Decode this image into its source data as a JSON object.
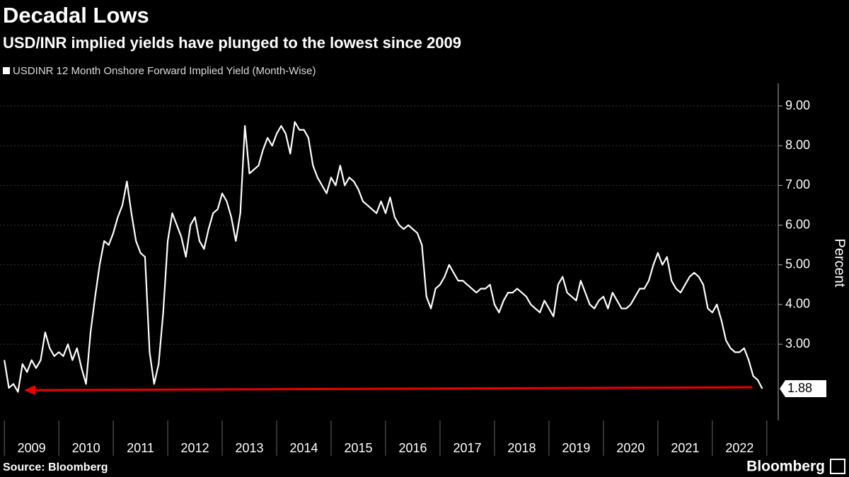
{
  "chart_data": {
    "type": "line",
    "title": "Decadal Lows",
    "subtitle": "USD/INR implied yields have plunged to the lowest since 2009",
    "y_label": "Percent",
    "source": "Source: Bloomberg",
    "brand": "Bloomberg",
    "xlim": [
      2008.92,
      2023.21
    ],
    "xticks": [
      2009,
      2010,
      2011,
      2012,
      2013,
      2014,
      2015,
      2016,
      2017,
      2018,
      2019,
      2020,
      2021,
      2022
    ],
    "ylim": [
      1.08,
      9.57
    ],
    "yticks": [
      {
        "value": 3,
        "label": "3.00"
      },
      {
        "value": 4,
        "label": "4.00"
      },
      {
        "value": 5,
        "label": "5.00"
      },
      {
        "value": 6,
        "label": "6.00"
      },
      {
        "value": 7,
        "label": "7.00"
      },
      {
        "value": 8,
        "label": "8.00"
      },
      {
        "value": 9,
        "label": "9.00"
      }
    ],
    "grid": true,
    "x": [
      2009,
      2009.083,
      2009.167,
      2009.25,
      2009.333,
      2009.417,
      2009.5,
      2009.583,
      2009.667,
      2009.75,
      2009.833,
      2009.917,
      2010,
      2010.083,
      2010.167,
      2010.25,
      2010.333,
      2010.417,
      2010.5,
      2010.583,
      2010.667,
      2010.75,
      2010.833,
      2010.917,
      2011,
      2011.083,
      2011.167,
      2011.25,
      2011.333,
      2011.417,
      2011.5,
      2011.583,
      2011.667,
      2011.75,
      2011.833,
      2011.917,
      2012,
      2012.083,
      2012.167,
      2012.25,
      2012.333,
      2012.417,
      2012.5,
      2012.583,
      2012.667,
      2012.75,
      2012.833,
      2012.917,
      2013,
      2013.083,
      2013.167,
      2013.25,
      2013.333,
      2013.417,
      2013.5,
      2013.583,
      2013.667,
      2013.75,
      2013.833,
      2013.917,
      2014,
      2014.083,
      2014.167,
      2014.25,
      2014.333,
      2014.417,
      2014.5,
      2014.583,
      2014.667,
      2014.75,
      2014.833,
      2014.917,
      2015,
      2015.083,
      2015.167,
      2015.25,
      2015.333,
      2015.417,
      2015.5,
      2015.583,
      2015.667,
      2015.75,
      2015.833,
      2015.917,
      2016,
      2016.083,
      2016.167,
      2016.25,
      2016.333,
      2016.417,
      2016.5,
      2016.583,
      2016.667,
      2016.75,
      2016.833,
      2016.917,
      2017,
      2017.083,
      2017.167,
      2017.25,
      2017.333,
      2017.417,
      2017.5,
      2017.583,
      2017.667,
      2017.75,
      2017.833,
      2017.917,
      2018,
      2018.083,
      2018.167,
      2018.25,
      2018.333,
      2018.417,
      2018.5,
      2018.583,
      2018.667,
      2018.75,
      2018.833,
      2018.917,
      2019,
      2019.083,
      2019.167,
      2019.25,
      2019.333,
      2019.417,
      2019.5,
      2019.583,
      2019.667,
      2019.75,
      2019.833,
      2019.917,
      2020,
      2020.083,
      2020.167,
      2020.25,
      2020.333,
      2020.417,
      2020.5,
      2020.583,
      2020.667,
      2020.75,
      2020.833,
      2020.917,
      2021,
      2021.083,
      2021.167,
      2021.25,
      2021.333,
      2021.417,
      2021.5,
      2021.583,
      2021.667,
      2021.75,
      2021.833,
      2021.917,
      2022,
      2022.083,
      2022.167,
      2022.25,
      2022.333,
      2022.417,
      2022.5,
      2022.583,
      2022.667,
      2022.75,
      2022.833,
      2022.917
    ],
    "series": [
      {
        "name": "USDINR 12 Month Onshore Forward Implied Yield (Month-Wise)",
        "color": "#ffffff",
        "values": [
          2.6,
          1.9,
          2.0,
          1.8,
          2.5,
          2.3,
          2.6,
          2.4,
          2.6,
          3.3,
          2.9,
          2.7,
          2.8,
          2.7,
          3.0,
          2.6,
          2.9,
          2.4,
          2.0,
          3.3,
          4.2,
          5.0,
          5.6,
          5.5,
          5.8,
          6.2,
          6.5,
          7.1,
          6.3,
          5.6,
          5.3,
          5.2,
          2.8,
          2.0,
          2.5,
          3.8,
          5.6,
          6.3,
          6.0,
          5.7,
          5.2,
          6.0,
          6.2,
          5.6,
          5.4,
          5.9,
          6.3,
          6.4,
          6.8,
          6.6,
          6.2,
          5.6,
          6.3,
          8.5,
          7.3,
          7.4,
          7.5,
          7.9,
          8.2,
          8.0,
          8.3,
          8.5,
          8.3,
          7.8,
          8.6,
          8.4,
          8.4,
          8.2,
          7.5,
          7.2,
          7.0,
          6.8,
          7.2,
          7.0,
          7.5,
          7.0,
          7.2,
          7.1,
          6.9,
          6.6,
          6.5,
          6.4,
          6.3,
          6.6,
          6.3,
          6.7,
          6.2,
          6.0,
          5.9,
          6.0,
          5.9,
          5.8,
          5.5,
          4.2,
          3.9,
          4.4,
          4.5,
          4.7,
          5.0,
          4.8,
          4.6,
          4.6,
          4.5,
          4.4,
          4.3,
          4.4,
          4.4,
          4.5,
          4.0,
          3.8,
          4.1,
          4.3,
          4.3,
          4.4,
          4.3,
          4.2,
          4.0,
          3.9,
          3.8,
          4.1,
          3.9,
          3.7,
          4.5,
          4.7,
          4.3,
          4.2,
          4.1,
          4.6,
          4.3,
          4.0,
          3.9,
          4.1,
          4.2,
          3.9,
          4.3,
          4.1,
          3.9,
          3.9,
          4.0,
          4.2,
          4.4,
          4.4,
          4.6,
          5.0,
          5.3,
          5.0,
          5.2,
          4.6,
          4.4,
          4.3,
          4.5,
          4.7,
          4.8,
          4.7,
          4.5,
          3.9,
          3.8,
          4.0,
          3.6,
          3.1,
          2.9,
          2.8,
          2.8,
          2.9,
          2.6,
          2.2,
          2.1,
          1.88
        ]
      }
    ]
  }
}
